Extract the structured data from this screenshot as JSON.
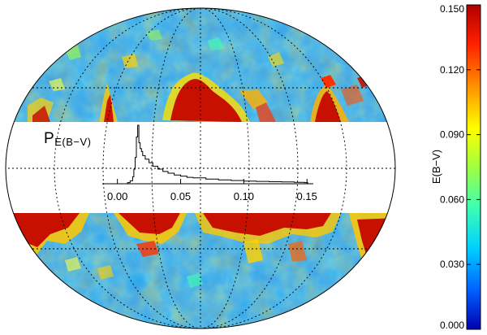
{
  "chart_data": [
    {
      "type": "heatmap",
      "projection": "aitoff-hammer",
      "colorbar": {
        "label": "E(B−V)",
        "ticks": [
          "0.000",
          "0.030",
          "0.060",
          "0.090",
          "0.120",
          "0.150"
        ],
        "range": [
          0.0,
          0.15
        ],
        "colormap": [
          "#0000b0",
          "#0060ff",
          "#00d0ff",
          "#40ffb0",
          "#a0ff40",
          "#ffff00",
          "#ff9000",
          "#ff2000",
          "#b00000"
        ]
      },
      "masked_band": "white",
      "grid": true,
      "grid_style": "dotted",
      "hot_spot_color": "#c81000",
      "base_color": "#3aa0e8"
    },
    {
      "type": "line",
      "style": "step-histogram",
      "title": "P",
      "title_subscript": "E(B−V)",
      "x_ticks": [
        "0.00",
        "0.05",
        "0.10",
        "0.15"
      ],
      "xlim": [
        -0.012,
        0.155
      ],
      "ylim": [
        0,
        1.0
      ],
      "x": [
        0.008,
        0.01,
        0.012,
        0.013,
        0.014,
        0.015,
        0.016,
        0.017,
        0.018,
        0.019,
        0.02,
        0.022,
        0.025,
        0.028,
        0.032,
        0.036,
        0.04,
        0.045,
        0.05,
        0.055,
        0.06,
        0.07,
        0.08,
        0.09,
        0.1,
        0.11,
        0.12,
        0.13,
        0.14,
        0.148
      ],
      "y": [
        0.02,
        0.05,
        0.12,
        0.25,
        0.45,
        0.8,
        1.0,
        0.7,
        0.6,
        0.55,
        0.48,
        0.42,
        0.36,
        0.3,
        0.25,
        0.21,
        0.18,
        0.15,
        0.13,
        0.11,
        0.1,
        0.08,
        0.065,
        0.055,
        0.045,
        0.04,
        0.035,
        0.03,
        0.025,
        0.02
      ]
    }
  ]
}
